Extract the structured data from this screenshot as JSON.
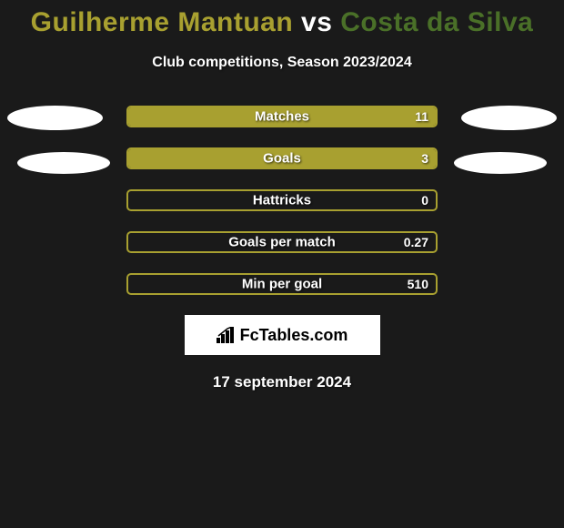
{
  "title": {
    "player1": "Guilherme Mantuan",
    "separator": "vs",
    "player2": "Costa da Silva",
    "color1": "#a8a030",
    "color2": "#4a7028",
    "fontsize": 30
  },
  "subtitle": "Club competitions, Season 2023/2024",
  "stats": [
    {
      "label": "Matches",
      "value": "11",
      "border": "#a8a030",
      "fill": "#a8a030",
      "fill_pct": 100,
      "fill_side": "left"
    },
    {
      "label": "Goals",
      "value": "3",
      "border": "#a8a030",
      "fill": "#a8a030",
      "fill_pct": 100,
      "fill_side": "left"
    },
    {
      "label": "Hattricks",
      "value": "0",
      "border": "#a8a030",
      "fill": "#a8a030",
      "fill_pct": 0,
      "fill_side": "left"
    },
    {
      "label": "Goals per match",
      "value": "0.27",
      "border": "#a8a030",
      "fill": "#a8a030",
      "fill_pct": 0,
      "fill_side": "left"
    },
    {
      "label": "Min per goal",
      "value": "510",
      "border": "#a8a030",
      "fill": "#a8a030",
      "fill_pct": 0,
      "fill_side": "left"
    }
  ],
  "logo_text": "FcTables.com",
  "date": "17 september 2024",
  "colors": {
    "background": "#1a1a1a",
    "badge": "#ffffff",
    "text": "#ffffff"
  }
}
